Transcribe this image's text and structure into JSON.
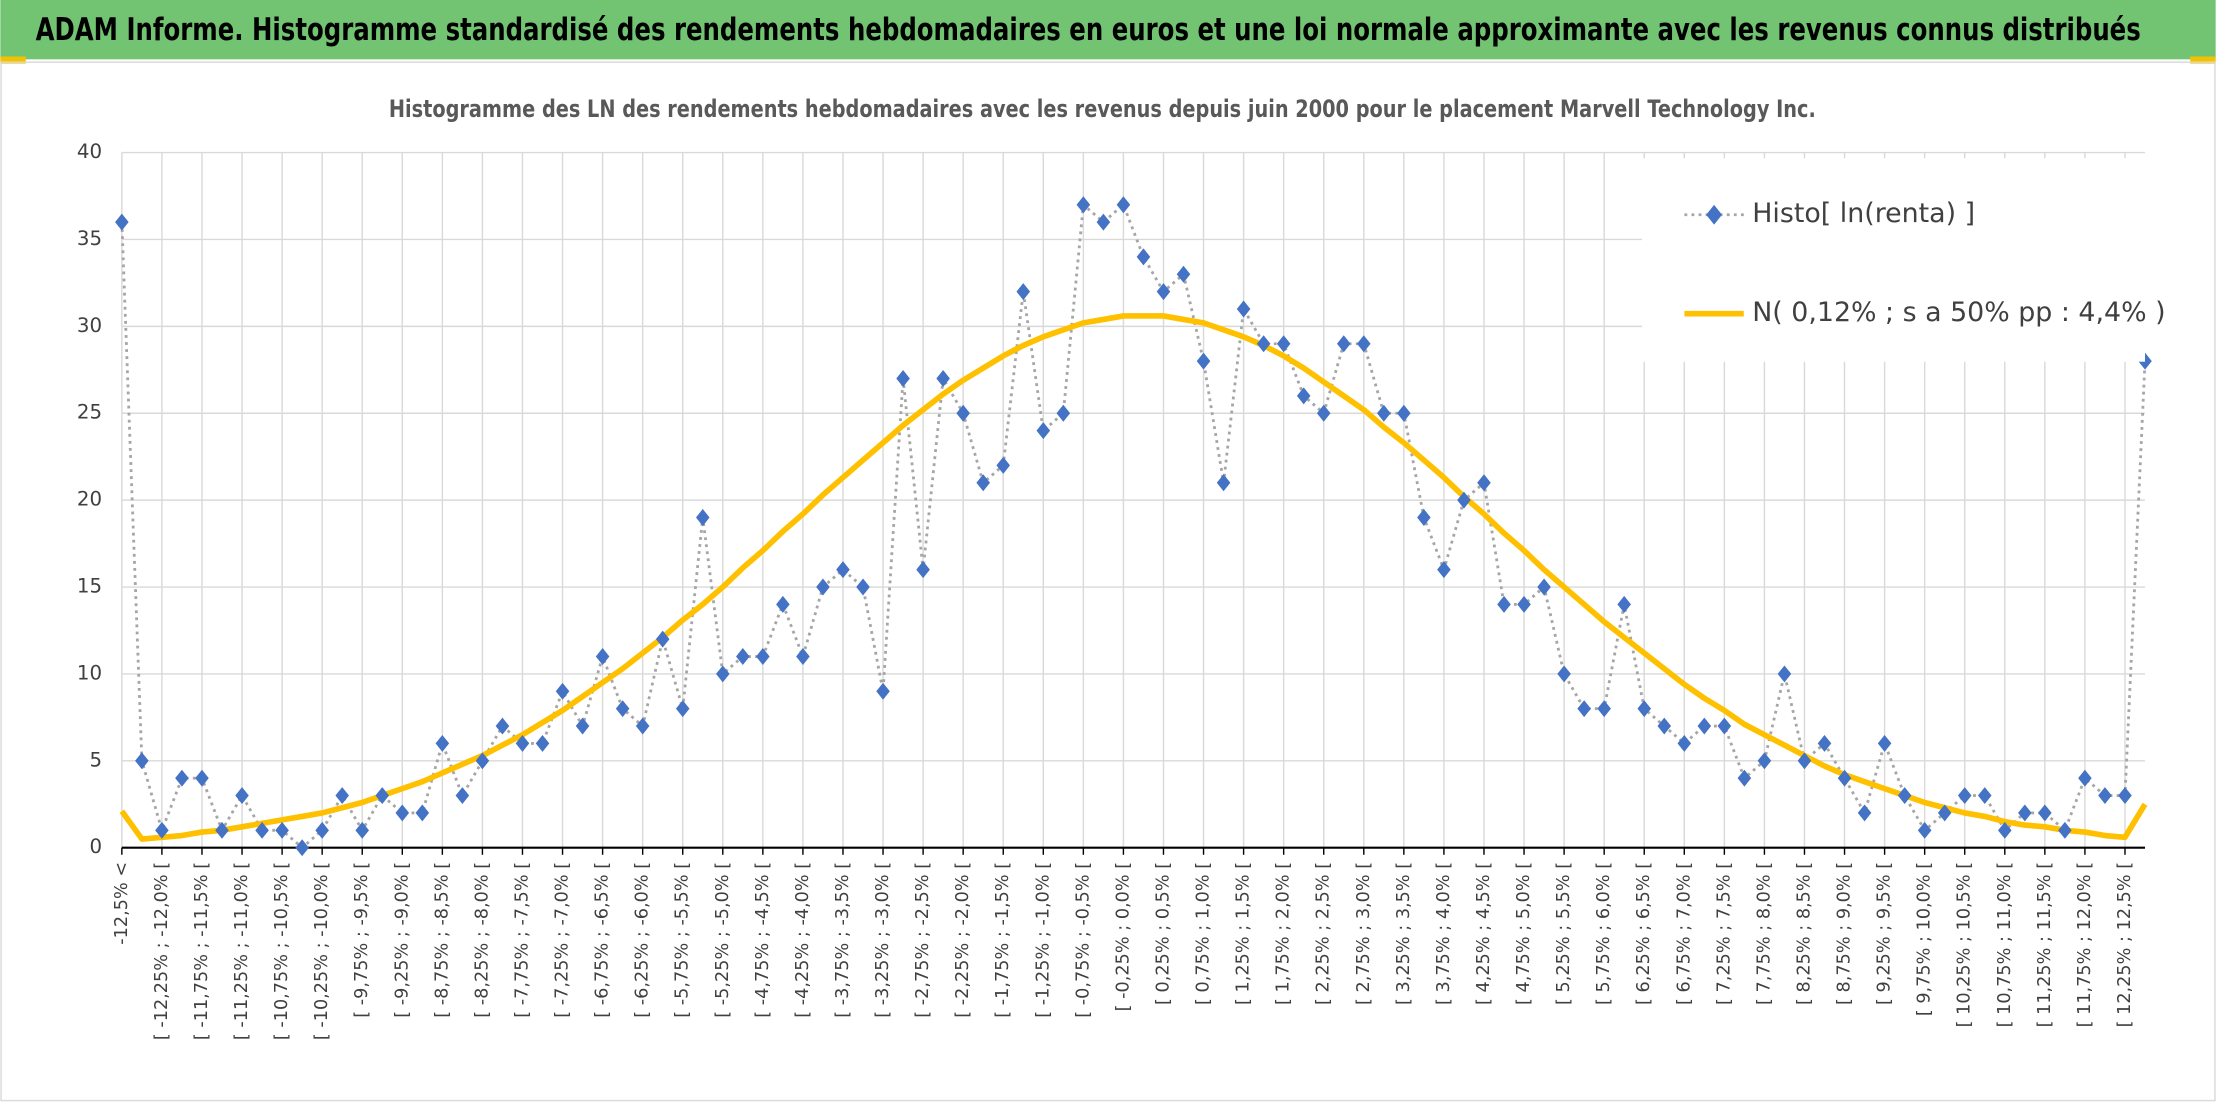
{
  "chart_data": {
    "type": "line",
    "header": "ADAM Informe. Histogramme standardisé des rendements hebdomadaires en euros et une loi normale approximante avec les revenus connus distribués",
    "title": "Histogramme des LN des rendements hebdomadaires avec les revenus depuis juin 2000 pour le placement Marvell Technology Inc.",
    "categories": [
      "-12,5% <",
      null,
      "[ -12,25% ; -12,0% [",
      null,
      "[ -11,75% ; -11,5% [",
      null,
      "[ -11,25% ; -11,0% [",
      null,
      "[ -10,75% ; -10,5% [",
      null,
      "[ -10,25% ; -10,0% [",
      null,
      "[ -9,75% ; -9,5% [",
      null,
      "[ -9,25% ; -9,0% [",
      null,
      "[ -8,75% ; -8,5% [",
      null,
      "[ -8,25% ; -8,0% [",
      null,
      "[ -7,75% ; -7,5% [",
      null,
      "[ -7,25% ; -7,0% [",
      null,
      "[ -6,75% ; -6,5% [",
      null,
      "[ -6,25% ; -6,0% [",
      null,
      "[ -5,75% ; -5,5% [",
      null,
      "[ -5,25% ; -5,0% [",
      null,
      "[ -4,75% ; -4,5% [",
      null,
      "[ -4,25% ; -4,0% [",
      null,
      "[ -3,75% ; -3,5% [",
      null,
      "[ -3,25% ; -3,0% [",
      null,
      "[ -2,75% ; -2,5% [",
      null,
      "[ -2,25% ; -2,0% [",
      null,
      "[ -1,75% ; -1,5% [",
      null,
      "[ -1,25% ; -1,0% [",
      null,
      "[ -0,75% ; -0,5% [",
      null,
      "[ -0,25% ; 0,0% [",
      null,
      "[ 0,25% ; 0,5% [",
      null,
      "[ 0,75% ; 1,0% [",
      null,
      "[ 1,25% ; 1,5% [",
      null,
      "[ 1,75% ; 2,0% [",
      null,
      "[ 2,25% ; 2,5% [",
      null,
      "[ 2,75% ; 3,0% [",
      null,
      "[ 3,25% ; 3,5% [",
      null,
      "[ 3,75% ; 4,0% [",
      null,
      "[ 4,25% ; 4,5% [",
      null,
      "[ 4,75% ; 5,0% [",
      null,
      "[ 5,25% ; 5,5% [",
      null,
      "[ 5,75% ; 6,0% [",
      null,
      "[ 6,25% ; 6,5% [",
      null,
      "[ 6,75% ; 7,0% [",
      null,
      "[ 7,25% ; 7,5% [",
      null,
      "[ 7,75% ; 8,0% [",
      null,
      "[ 8,25% ; 8,5% [",
      null,
      "[ 8,75% ; 9,0% [",
      null,
      "[ 9,25% ; 9,5% [",
      null,
      "[ 9,75% ; 10,0% [",
      null,
      "[ 10,25% ; 10,5% [",
      null,
      "[ 10,75% ; 11,0% [",
      null,
      "[ 11,25% ; 11,5% [",
      null,
      "[ 11,75% ; 12,0% [",
      null,
      "[ 12,25% ; 12,5% [",
      null
    ],
    "series": [
      {
        "name": "Histo[ ln(renta) ]",
        "color": "#4472c4",
        "line_color": "#a6a6a6",
        "marker": "diamond",
        "dash": "dotted",
        "values": [
          36,
          5,
          1,
          4,
          4,
          1,
          3,
          1,
          1,
          0,
          1,
          3,
          1,
          3,
          2,
          2,
          6,
          3,
          5,
          7,
          6,
          6,
          9,
          7,
          11,
          8,
          7,
          12,
          8,
          19,
          10,
          11,
          11,
          14,
          11,
          15,
          16,
          15,
          9,
          27,
          16,
          27,
          25,
          21,
          22,
          32,
          24,
          25,
          37,
          36,
          37,
          34,
          32,
          33,
          28,
          21,
          31,
          29,
          29,
          26,
          25,
          29,
          29,
          25,
          25,
          19,
          16,
          20,
          21,
          14,
          14,
          15,
          10,
          8,
          8,
          14,
          8,
          7,
          6,
          7,
          7,
          4,
          5,
          10,
          5,
          6,
          4,
          2,
          6,
          3,
          1,
          2,
          3,
          3,
          1,
          2,
          2,
          1,
          4,
          3,
          3,
          28
        ]
      },
      {
        "name": "N( 0,12% ; s a 50% pp : 4,4% )",
        "color": "#ffc000",
        "values": [
          2.1,
          0.5,
          0.6,
          0.7,
          0.9,
          1.0,
          1.2,
          1.4,
          1.6,
          1.8,
          2.0,
          2.3,
          2.6,
          3.0,
          3.4,
          3.8,
          4.3,
          4.8,
          5.3,
          5.9,
          6.5,
          7.2,
          7.9,
          8.7,
          9.5,
          10.3,
          11.2,
          12.1,
          13.1,
          14.0,
          15.0,
          16.1,
          17.1,
          18.2,
          19.2,
          20.3,
          21.3,
          22.3,
          23.3,
          24.3,
          25.2,
          26.1,
          26.9,
          27.6,
          28.3,
          28.9,
          29.4,
          29.8,
          30.2,
          30.4,
          30.6,
          30.6,
          30.6,
          30.4,
          30.2,
          29.8,
          29.4,
          28.9,
          28.3,
          27.6,
          26.8,
          26.0,
          25.2,
          24.2,
          23.3,
          22.3,
          21.3,
          20.2,
          19.2,
          18.1,
          17.1,
          16.0,
          15.0,
          14.0,
          13.0,
          12.1,
          11.2,
          10.3,
          9.4,
          8.6,
          7.9,
          7.1,
          6.5,
          5.9,
          5.3,
          4.7,
          4.2,
          3.8,
          3.4,
          3.0,
          2.6,
          2.3,
          2.0,
          1.8,
          1.5,
          1.3,
          1.2,
          1.0,
          0.9,
          0.7,
          0.6,
          2.5
        ]
      }
    ],
    "ylim": [
      0,
      40
    ],
    "yticks": [
      0,
      5,
      10,
      15,
      20,
      25,
      30,
      35,
      40
    ],
    "grid": true,
    "legend": "top-right"
  }
}
